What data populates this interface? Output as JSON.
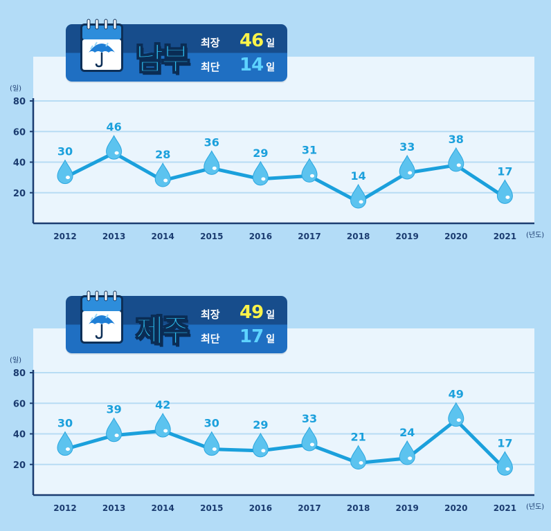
{
  "chart_data": [
    {
      "type": "line",
      "region": "남부",
      "summary": {
        "max_label": "최장",
        "max_value": "46",
        "min_label": "최단",
        "min_value": "14",
        "unit": "일"
      },
      "categories": [
        "2012",
        "2013",
        "2014",
        "2015",
        "2016",
        "2017",
        "2018",
        "2019",
        "2020",
        "2021"
      ],
      "values": [
        30,
        46,
        28,
        36,
        29,
        31,
        14,
        33,
        38,
        17
      ],
      "ylabel": "(일)",
      "xlabel": "(년도)",
      "y_ticks": [
        "20",
        "40",
        "60",
        "80"
      ],
      "ylim": [
        0,
        80
      ],
      "grid": true,
      "colors": {
        "line": "#1ba0dc",
        "label": "#1ba0dc",
        "drop": "#5cc3ef"
      }
    },
    {
      "type": "line",
      "region": "제주",
      "summary": {
        "max_label": "최장",
        "max_value": "49",
        "min_label": "최단",
        "min_value": "17",
        "unit": "일"
      },
      "categories": [
        "2012",
        "2013",
        "2014",
        "2015",
        "2016",
        "2017",
        "2018",
        "2019",
        "2020",
        "2021"
      ],
      "values": [
        30,
        39,
        42,
        30,
        29,
        33,
        21,
        24,
        49,
        17
      ],
      "ylabel": "(일)",
      "xlabel": "(년도)",
      "y_ticks": [
        "20",
        "40",
        "60",
        "80"
      ],
      "ylim": [
        0,
        80
      ],
      "grid": true,
      "colors": {
        "line": "#1ba0dc",
        "label": "#1ba0dc",
        "drop": "#5cc3ef"
      }
    }
  ]
}
